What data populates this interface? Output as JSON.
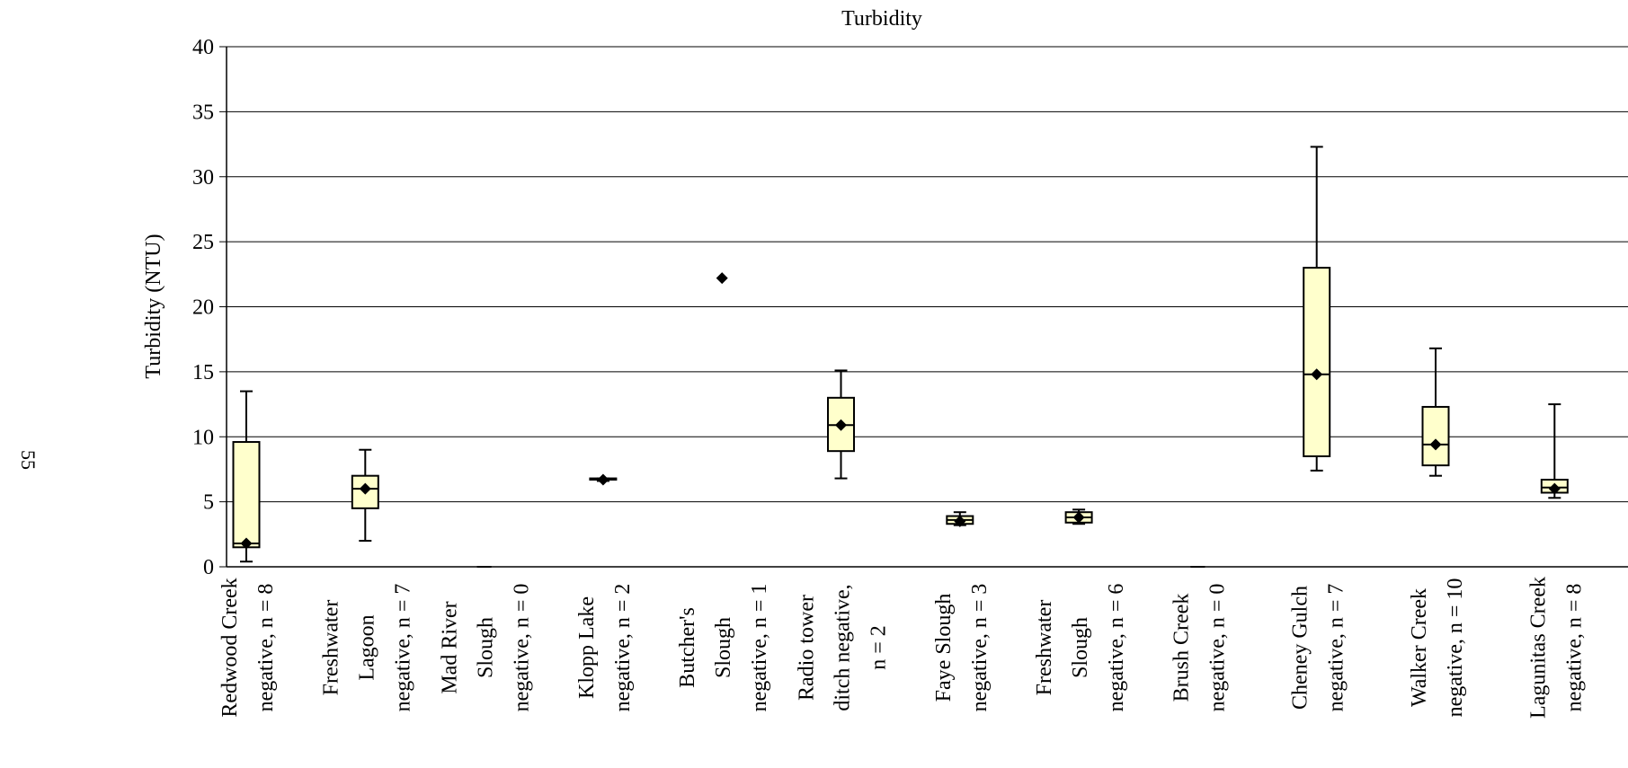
{
  "page_number": "55",
  "chart_data": {
    "type": "box",
    "title": "Turbidity",
    "ylabel": "Turbidity (NTU)",
    "xlabel": "",
    "ylim": [
      0,
      40
    ],
    "yticks": [
      0,
      5,
      10,
      15,
      20,
      25,
      30,
      35,
      40
    ],
    "grid": true,
    "colors": {
      "box_fill": "#ffffcc",
      "box_stroke": "#000000",
      "grid": "#000000",
      "mean_marker": "#000000"
    },
    "categories": [
      {
        "label": [
          "Redwood Creek",
          "negative, n = 8"
        ],
        "min": 0.4,
        "q1": 1.5,
        "median": 1.8,
        "q3": 9.6,
        "max": 13.5,
        "mean": 1.8
      },
      {
        "label": [
          "Freshwater",
          "Lagoon",
          "negative, n = 7"
        ],
        "min": 2.0,
        "q1": 4.5,
        "median": 6.0,
        "q3": 7.0,
        "max": 9.0,
        "mean": 6.0
      },
      {
        "label": [
          "Mad River",
          "Slough",
          "negative, n = 0"
        ],
        "empty": true
      },
      {
        "label": [
          "Klopp Lake",
          "negative, n = 2"
        ],
        "min": 6.6,
        "q1": 6.7,
        "median": 6.7,
        "q3": 6.8,
        "max": 6.8,
        "mean": 6.7
      },
      {
        "label": [
          "Butcher's",
          "Slough",
          "negative, n = 1"
        ],
        "mean": 22.2
      },
      {
        "label": [
          "Radio tower",
          "ditch negative,",
          "n = 2"
        ],
        "min": 6.8,
        "q1": 8.9,
        "median": 10.9,
        "q3": 13.0,
        "max": 15.1,
        "mean": 10.9
      },
      {
        "label": [
          "Faye Slough",
          "negative, n = 3"
        ],
        "min": 3.2,
        "q1": 3.3,
        "median": 3.6,
        "q3": 3.9,
        "max": 4.2,
        "mean": 3.5
      },
      {
        "label": [
          "Freshwater",
          "Slough",
          "negative, n = 6"
        ],
        "min": 3.3,
        "q1": 3.4,
        "median": 3.8,
        "q3": 4.2,
        "max": 4.4,
        "mean": 3.8
      },
      {
        "label": [
          "Brush Creek",
          "negative, n = 0"
        ],
        "empty": true
      },
      {
        "label": [
          "Cheney Gulch",
          "negative, n = 7"
        ],
        "min": 7.4,
        "q1": 8.5,
        "median": 14.8,
        "q3": 23.0,
        "max": 32.3,
        "mean": 14.8
      },
      {
        "label": [
          "Walker Creek",
          "negative, n = 10"
        ],
        "min": 7.0,
        "q1": 7.8,
        "median": 9.4,
        "q3": 12.3,
        "max": 16.8,
        "mean": 9.4
      },
      {
        "label": [
          "Lagunitas Creek",
          "negative, n = 8"
        ],
        "min": 5.3,
        "q1": 5.7,
        "median": 6.1,
        "q3": 6.7,
        "max": 12.5,
        "mean": 6.0
      }
    ]
  }
}
